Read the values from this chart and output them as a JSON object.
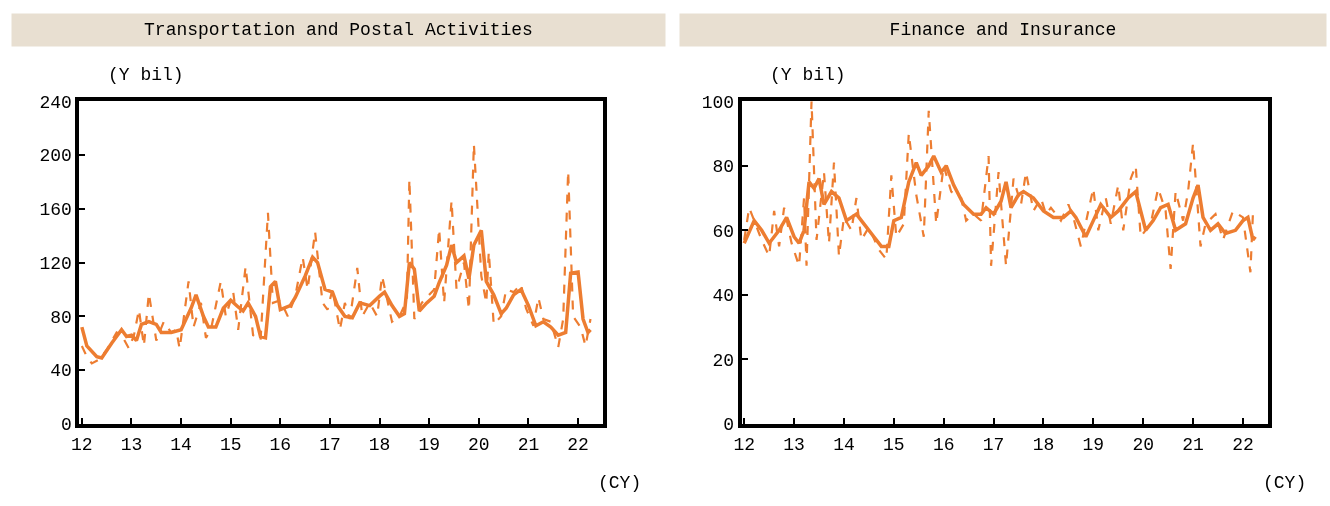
{
  "chart_data": [
    {
      "type": "line",
      "title": "Transportation and Postal Activities",
      "ylabel": "(Y bil)",
      "xlabel": "(CY)",
      "xlim": [
        11.95,
        22.5
      ],
      "xticks": [
        12,
        13,
        14,
        15,
        16,
        17,
        18,
        19,
        20,
        21,
        22
      ],
      "ylim": [
        0,
        240
      ],
      "yticks": [
        0,
        40,
        80,
        120,
        160,
        200,
        240
      ],
      "marker": "none",
      "series": [
        {
          "color": "#ed7d31",
          "line_style": "dashed",
          "x": [
            12.0,
            12.1,
            12.2,
            12.35,
            12.5,
            12.7,
            12.8,
            12.95,
            13.05,
            13.15,
            13.25,
            13.35,
            13.5,
            13.65,
            13.8,
            13.9,
            13.97,
            14.05,
            14.15,
            14.25,
            14.4,
            14.5,
            14.6,
            14.8,
            14.9,
            15.05,
            15.15,
            15.3,
            15.45,
            15.6,
            15.75,
            15.85,
            16.0,
            16.15,
            16.3,
            16.45,
            16.55,
            16.7,
            16.85,
            16.95,
            17.05,
            17.2,
            17.3,
            17.4,
            17.55,
            17.65,
            17.8,
            17.95,
            18.05,
            18.25,
            18.4,
            18.55,
            18.6,
            18.7,
            18.85,
            19.0,
            19.1,
            19.2,
            19.3,
            19.45,
            19.55,
            19.7,
            19.8,
            19.9,
            20.05,
            20.15,
            20.2,
            20.3,
            20.45,
            20.55,
            20.7,
            20.85,
            20.95,
            21.1,
            21.2,
            21.3,
            21.45,
            21.6,
            21.7,
            21.8,
            21.9,
            22.05,
            22.15,
            22.25
          ],
          "values": [
            58,
            50,
            45,
            48,
            55,
            68,
            66,
            56,
            66,
            85,
            58,
            97,
            62,
            76,
            68,
            70,
            56,
            78,
            106,
            72,
            90,
            64,
            70,
            106,
            80,
            98,
            70,
            117,
            66,
            62,
            157,
            90,
            92,
            80,
            95,
            124,
            100,
            143,
            90,
            85,
            100,
            70,
            90,
            78,
            116,
            80,
            90,
            80,
            110,
            76,
            80,
            92,
            182,
            78,
            90,
            96,
            100,
            145,
            90,
            166,
            100,
            120,
            85,
            208,
            110,
            90,
            128,
            74,
            80,
            100,
            98,
            104,
            86,
            73,
            94,
            78,
            76,
            57,
            78,
            188,
            80,
            72,
            58,
            78
          ]
        },
        {
          "color": "#ed7d31",
          "line_style": "solid",
          "x": [
            12.0,
            12.1,
            12.3,
            12.4,
            12.6,
            12.8,
            12.9,
            13.0,
            13.1,
            13.2,
            13.35,
            13.5,
            13.6,
            13.8,
            14.0,
            14.1,
            14.2,
            14.3,
            14.45,
            14.55,
            14.7,
            14.85,
            15.0,
            15.15,
            15.25,
            15.35,
            15.5,
            15.6,
            15.7,
            15.8,
            15.9,
            16.0,
            16.2,
            16.3,
            16.5,
            16.65,
            16.75,
            16.9,
            17.05,
            17.15,
            17.3,
            17.45,
            17.6,
            17.8,
            18.0,
            18.1,
            18.25,
            18.4,
            18.5,
            18.6,
            18.7,
            18.8,
            18.95,
            19.1,
            19.2,
            19.35,
            19.45,
            19.55,
            19.7,
            19.8,
            19.9,
            20.05,
            20.15,
            20.3,
            20.45,
            20.55,
            20.7,
            20.85,
            21.0,
            21.15,
            21.3,
            21.45,
            21.6,
            21.75,
            21.85,
            22.0,
            22.1,
            22.2,
            22.25
          ],
          "values": [
            72,
            58,
            50,
            49,
            60,
            70,
            65,
            66,
            62,
            74,
            76,
            74,
            68,
            68,
            70,
            78,
            86,
            96,
            80,
            72,
            72,
            86,
            92,
            87,
            84,
            90,
            80,
            65,
            64,
            102,
            106,
            85,
            88,
            94,
            110,
            124,
            120,
            100,
            98,
            88,
            80,
            79,
            90,
            88,
            95,
            98,
            88,
            80,
            82,
            120,
            115,
            84,
            90,
            95,
            105,
            118,
            133,
            120,
            125,
            108,
            133,
            144,
            106,
            96,
            82,
            86,
            96,
            100,
            88,
            73,
            76,
            72,
            66,
            68,
            112,
            113,
            78,
            68,
            70
          ]
        }
      ]
    },
    {
      "type": "line",
      "title": "Finance and Insurance",
      "ylabel": "(Y bil)",
      "xlabel": "(CY)",
      "xlim": [
        11.95,
        22.5
      ],
      "xticks": [
        12,
        13,
        14,
        15,
        16,
        17,
        18,
        19,
        20,
        21,
        22
      ],
      "ylim": [
        0,
        100
      ],
      "yticks": [
        0,
        20,
        40,
        60,
        80,
        100
      ],
      "marker": "none",
      "series": [
        {
          "color": "#ed7d31",
          "line_style": "dashed",
          "x": [
            12.0,
            12.1,
            12.2,
            12.35,
            12.5,
            12.6,
            12.7,
            12.8,
            12.95,
            13.1,
            13.2,
            13.25,
            13.35,
            13.45,
            13.6,
            13.7,
            13.8,
            13.9,
            14.0,
            14.15,
            14.25,
            14.35,
            14.5,
            14.7,
            14.85,
            14.95,
            15.05,
            15.2,
            15.3,
            15.45,
            15.6,
            15.7,
            15.85,
            16.0,
            16.15,
            16.35,
            16.45,
            16.6,
            16.75,
            16.9,
            16.95,
            17.1,
            17.25,
            17.4,
            17.55,
            17.65,
            17.8,
            17.95,
            18.05,
            18.15,
            18.35,
            18.5,
            18.6,
            18.75,
            18.9,
            19.0,
            19.1,
            19.25,
            19.35,
            19.5,
            19.6,
            19.75,
            19.85,
            19.95,
            20.15,
            20.3,
            20.45,
            20.55,
            20.65,
            20.8,
            20.9,
            21.0,
            21.15,
            21.25,
            21.45,
            21.6,
            21.8,
            22.0,
            22.15,
            22.2
          ],
          "values": [
            57,
            67,
            63,
            57,
            52,
            66,
            55,
            67,
            56,
            49,
            70,
            49,
            100,
            57,
            78,
            56,
            81,
            52,
            64,
            60,
            70,
            57,
            61,
            54,
            51,
            77,
            58,
            62,
            90,
            71,
            58,
            97,
            62,
            80,
            72,
            70,
            63,
            65,
            63,
            83,
            49,
            78,
            49,
            76,
            68,
            78,
            66,
            70,
            65,
            67,
            63,
            68,
            64,
            55,
            66,
            73,
            60,
            70,
            62,
            74,
            60,
            76,
            80,
            58,
            62,
            73,
            66,
            48,
            72,
            63,
            72,
            87,
            55,
            62,
            65,
            57,
            66,
            64,
            47,
            65
          ]
        },
        {
          "color": "#ed7d31",
          "line_style": "solid",
          "x": [
            12.0,
            12.2,
            12.35,
            12.5,
            12.7,
            12.85,
            13.0,
            13.1,
            13.2,
            13.3,
            13.4,
            13.5,
            13.6,
            13.75,
            13.9,
            14.05,
            14.25,
            14.4,
            14.6,
            14.75,
            14.9,
            15.0,
            15.15,
            15.3,
            15.45,
            15.55,
            15.7,
            15.8,
            15.95,
            16.05,
            16.2,
            16.4,
            16.6,
            16.75,
            16.85,
            17.0,
            17.15,
            17.25,
            17.35,
            17.5,
            17.6,
            17.8,
            18.0,
            18.2,
            18.4,
            18.55,
            18.65,
            18.85,
            19.0,
            19.15,
            19.35,
            19.5,
            19.7,
            19.85,
            20.05,
            20.2,
            20.35,
            20.5,
            20.65,
            20.85,
            21.0,
            21.1,
            21.2,
            21.35,
            21.5,
            21.65,
            21.85,
            22.0,
            22.1,
            22.2,
            22.25
          ],
          "values": [
            56,
            63,
            60,
            56,
            60,
            64,
            58,
            56,
            60,
            75,
            73,
            76,
            68,
            72,
            70,
            63,
            65,
            62,
            58,
            55,
            55,
            63,
            64,
            75,
            81,
            77,
            80,
            83,
            78,
            80,
            74,
            68,
            65,
            65,
            67,
            65,
            69,
            75,
            67,
            71,
            72,
            70,
            66,
            64,
            64,
            66,
            64,
            58,
            63,
            68,
            64,
            66,
            70,
            72,
            60,
            63,
            67,
            68,
            60,
            62,
            70,
            74,
            64,
            60,
            62,
            59,
            60,
            63,
            64,
            57,
            58
          ]
        }
      ]
    }
  ]
}
